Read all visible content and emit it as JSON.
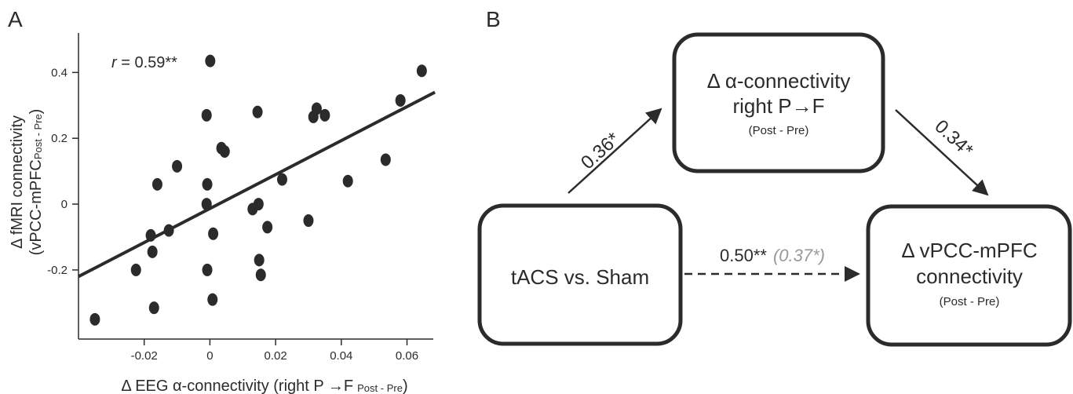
{
  "panel_a": {
    "label": "A",
    "annotation": {
      "symbol": "r",
      "text": " = 0.59**"
    }
  },
  "panel_b": {
    "label": "B",
    "boxes": {
      "x": {
        "lines": [
          "tACS vs. Sham"
        ]
      },
      "mediator": {
        "lines": [
          "Δ α-connectivity",
          "right P→F"
        ],
        "sub": "(Post - Pre)"
      },
      "y": {
        "lines": [
          "Δ vPCC-mPFC",
          "connectivity"
        ],
        "sub": "(Post - Pre)"
      }
    },
    "paths": {
      "a": "0.36*",
      "b": "0.34*",
      "c_total": "0.50**",
      "c_direct": "(0.37*)"
    },
    "colors": {
      "ink": "#2b2b2b",
      "direct_effect": "#999999"
    }
  },
  "chart_data": {
    "type": "scatter",
    "xlabel": {
      "main": "Δ EEG α-connectivity (right P ",
      "arrow": "→",
      "f": "F",
      "sub": "Post - Pre",
      "close": ")"
    },
    "ylabel": {
      "line1": "Δ fMRI connectivity",
      "line2_main": "(vPCC-mPFC",
      "line2_sub": "Post - Pre",
      "line2_close": ")"
    },
    "xlim": [
      -0.04,
      0.068
    ],
    "ylim": [
      -0.41,
      0.52
    ],
    "xticks": [
      {
        "v": 0,
        "label": "0"
      },
      {
        "v": 0.02,
        "label": "0.02"
      },
      {
        "v": 0.04,
        "label": "0.04"
      },
      {
        "v": 0.06,
        "label": "0.06"
      },
      {
        "v": -0.02,
        "label": "-0.02"
      }
    ],
    "yticks": [
      {
        "v": 0.4,
        "label": "0.4"
      },
      {
        "v": 0.2,
        "label": "0.2"
      },
      {
        "v": 0,
        "label": "0"
      },
      {
        "v": -0.2,
        "label": "-0.2"
      }
    ],
    "points": [
      [
        -0.035,
        -0.35
      ],
      [
        -0.0225,
        -0.2
      ],
      [
        -0.018,
        -0.095
      ],
      [
        -0.0175,
        -0.145
      ],
      [
        -0.017,
        -0.315
      ],
      [
        -0.016,
        0.06
      ],
      [
        -0.0125,
        -0.08
      ],
      [
        -0.01,
        0.115
      ],
      [
        -0.001,
        0.27
      ],
      [
        -0.0008,
        0.06
      ],
      [
        -0.001,
        0.0
      ],
      [
        -0.0008,
        -0.2
      ],
      [
        0.0001,
        0.435
      ],
      [
        0.001,
        -0.09
      ],
      [
        0.0008,
        -0.29
      ],
      [
        0.0035,
        0.17
      ],
      [
        0.0045,
        0.16
      ],
      [
        0.013,
        -0.015
      ],
      [
        0.0145,
        0.28
      ],
      [
        0.0148,
        0.0
      ],
      [
        0.015,
        -0.17
      ],
      [
        0.0155,
        -0.215
      ],
      [
        0.0175,
        -0.07
      ],
      [
        0.022,
        0.075
      ],
      [
        0.03,
        -0.05
      ],
      [
        0.0315,
        0.265
      ],
      [
        0.0325,
        0.29
      ],
      [
        0.035,
        0.27
      ],
      [
        0.042,
        0.07
      ],
      [
        0.0535,
        0.135
      ],
      [
        0.058,
        0.315
      ],
      [
        0.0645,
        0.405
      ]
    ],
    "fit": {
      "x": [
        -0.04,
        0.0685
      ],
      "y": [
        -0.22,
        0.34
      ]
    },
    "marker_color": "#2b2b2b",
    "line_color": "#2b2b2b"
  }
}
